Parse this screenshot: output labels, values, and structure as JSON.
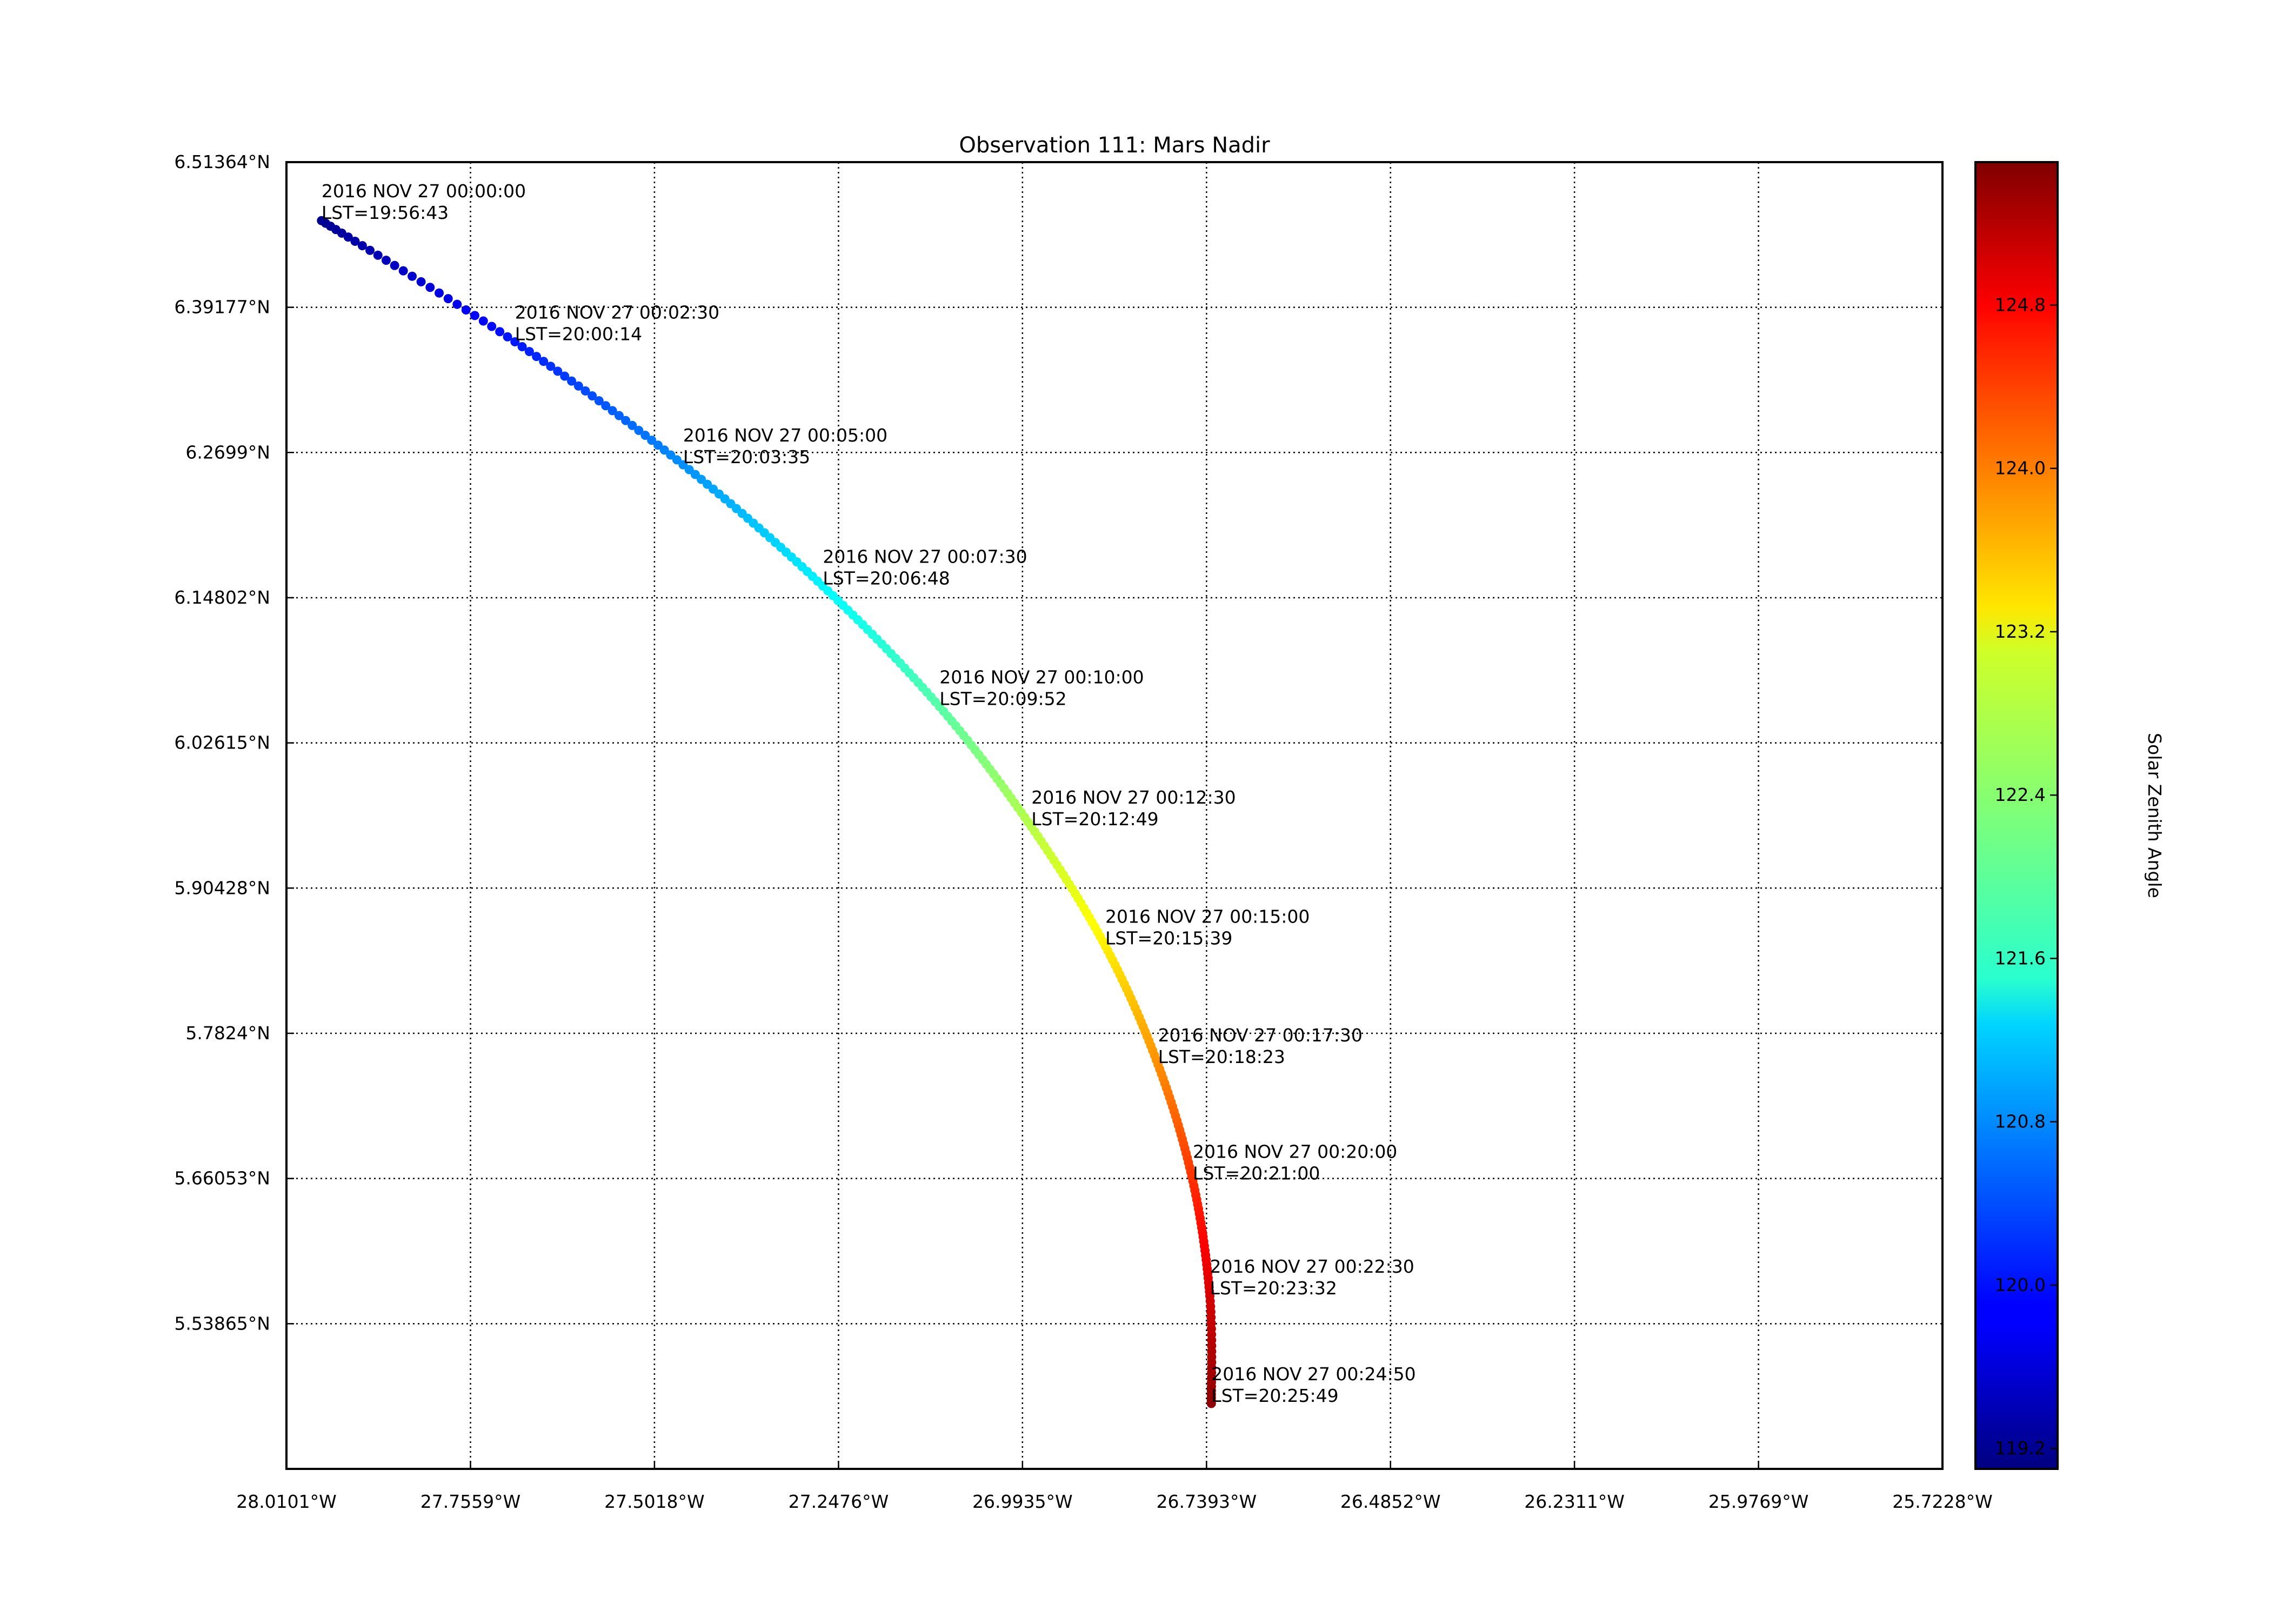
{
  "chart_data": {
    "type": "scatter",
    "title": "Observation 111: Mars Nadir",
    "xlabel": "",
    "ylabel": "",
    "xlim": [
      28.0101,
      25.7228
    ],
    "ylim": [
      5.4168,
      6.5136
    ],
    "x_ticks": [
      {
        "value": 28.0101,
        "label": "28.0101°W"
      },
      {
        "value": 27.7559,
        "label": "27.7559°W"
      },
      {
        "value": 27.5018,
        "label": "27.5018°W"
      },
      {
        "value": 27.2476,
        "label": "27.2476°W"
      },
      {
        "value": 26.9935,
        "label": "26.9935°W"
      },
      {
        "value": 26.7393,
        "label": "26.7393°W"
      },
      {
        "value": 26.4852,
        "label": "26.4852°W"
      },
      {
        "value": 26.2311,
        "label": "26.2311°W"
      },
      {
        "value": 25.9769,
        "label": "25.9769°W"
      },
      {
        "value": 25.7228,
        "label": "25.7228°W"
      }
    ],
    "y_ticks": [
      {
        "value": 6.51364,
        "label": "6.51364°N"
      },
      {
        "value": 6.39177,
        "label": "6.39177°N"
      },
      {
        "value": 6.2699,
        "label": "6.2699°N"
      },
      {
        "value": 6.14802,
        "label": "6.14802°N"
      },
      {
        "value": 6.02615,
        "label": "6.02615°N"
      },
      {
        "value": 5.90428,
        "label": "5.90428°N"
      },
      {
        "value": 5.7824,
        "label": "5.7824°N"
      },
      {
        "value": 5.66053,
        "label": "5.66053°N"
      },
      {
        "value": 5.53865,
        "label": "5.53865°N"
      }
    ],
    "grid": true,
    "colorbar": {
      "label": "Solar Zenith Angle",
      "range": [
        119.1,
        125.5
      ],
      "ticks": [
        "119.2",
        "120.0",
        "120.8",
        "121.6",
        "122.4",
        "123.2",
        "124.0",
        "124.8"
      ],
      "colormap": "jet"
    },
    "track_path": [
      {
        "lon": 27.9617,
        "lat": 6.4645,
        "sza": 119.2
      },
      {
        "lon": 27.6945,
        "lat": 6.3628,
        "sza": 120.05
      },
      {
        "lon": 27.4623,
        "lat": 6.2596,
        "sza": 120.8
      },
      {
        "lon": 27.2693,
        "lat": 6.1578,
        "sza": 121.45
      },
      {
        "lon": 27.1081,
        "lat": 6.0566,
        "sza": 122.05
      },
      {
        "lon": 26.9812,
        "lat": 5.9557,
        "sza": 122.65
      },
      {
        "lon": 26.8791,
        "lat": 5.8556,
        "sza": 123.2
      },
      {
        "lon": 26.8063,
        "lat": 5.7562,
        "sza": 123.8
      },
      {
        "lon": 26.7582,
        "lat": 5.6584,
        "sza": 124.4
      },
      {
        "lon": 26.7347,
        "lat": 5.5619,
        "sza": 124.95
      },
      {
        "lon": 26.7326,
        "lat": 5.4717,
        "sza": 125.4
      }
    ],
    "annotations": [
      {
        "lon": 27.9617,
        "lat": 6.4645,
        "time": "2016 NOV 27 00:00:00",
        "lst": "LST=19:56:43"
      },
      {
        "lon": 27.6945,
        "lat": 6.3628,
        "time": "2016 NOV 27 00:02:30",
        "lst": "LST=20:00:14"
      },
      {
        "lon": 27.4623,
        "lat": 6.2596,
        "time": "2016 NOV 27 00:05:00",
        "lst": "LST=20:03:35"
      },
      {
        "lon": 27.2693,
        "lat": 6.1578,
        "time": "2016 NOV 27 00:07:30",
        "lst": "LST=20:06:48"
      },
      {
        "lon": 27.1081,
        "lat": 6.0566,
        "time": "2016 NOV 27 00:10:00",
        "lst": "LST=20:09:52"
      },
      {
        "lon": 26.9812,
        "lat": 5.9557,
        "time": "2016 NOV 27 00:12:30",
        "lst": "LST=20:12:49"
      },
      {
        "lon": 26.8791,
        "lat": 5.8556,
        "time": "2016 NOV 27 00:15:00",
        "lst": "LST=20:15:39"
      },
      {
        "lon": 26.8063,
        "lat": 5.7562,
        "time": "2016 NOV 27 00:17:30",
        "lst": "LST=20:18:23"
      },
      {
        "lon": 26.7582,
        "lat": 5.6584,
        "time": "2016 NOV 27 00:20:00",
        "lst": "LST=20:21:00"
      },
      {
        "lon": 26.7347,
        "lat": 5.5619,
        "time": "2016 NOV 27 00:22:30",
        "lst": "LST=20:23:32"
      },
      {
        "lon": 26.7326,
        "lat": 5.4717,
        "time": "2016 NOV 27 00:24:50",
        "lst": "LST=20:25:49"
      }
    ]
  }
}
